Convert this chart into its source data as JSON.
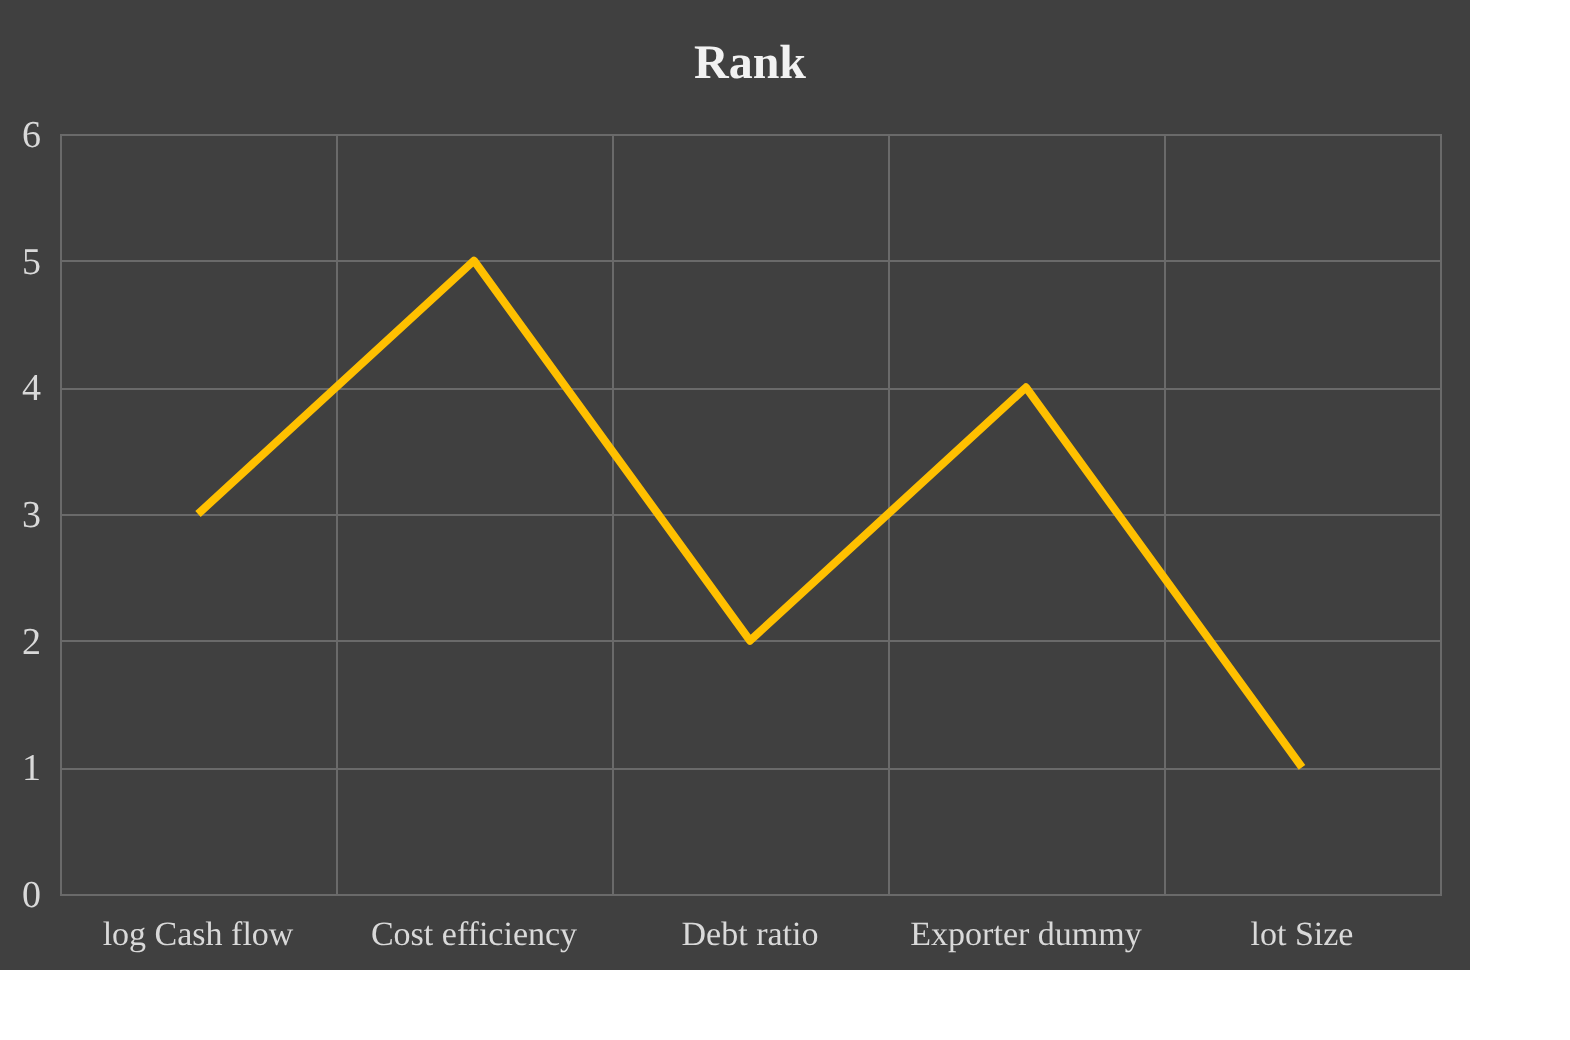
{
  "chart_data": {
    "type": "line",
    "title": "Rank",
    "categories": [
      "log Cash flow",
      "Cost efficiency",
      "Debt ratio",
      "Exporter dummy",
      "lot Size"
    ],
    "series": [
      {
        "color": "#ffc000",
        "values": [
          3,
          5,
          2,
          4,
          1
        ]
      }
    ],
    "ylim": [
      0,
      6
    ],
    "yticks": [
      0,
      1,
      2,
      3,
      4,
      5,
      6
    ],
    "grid": true,
    "marker": "none",
    "line_style": "solid"
  }
}
